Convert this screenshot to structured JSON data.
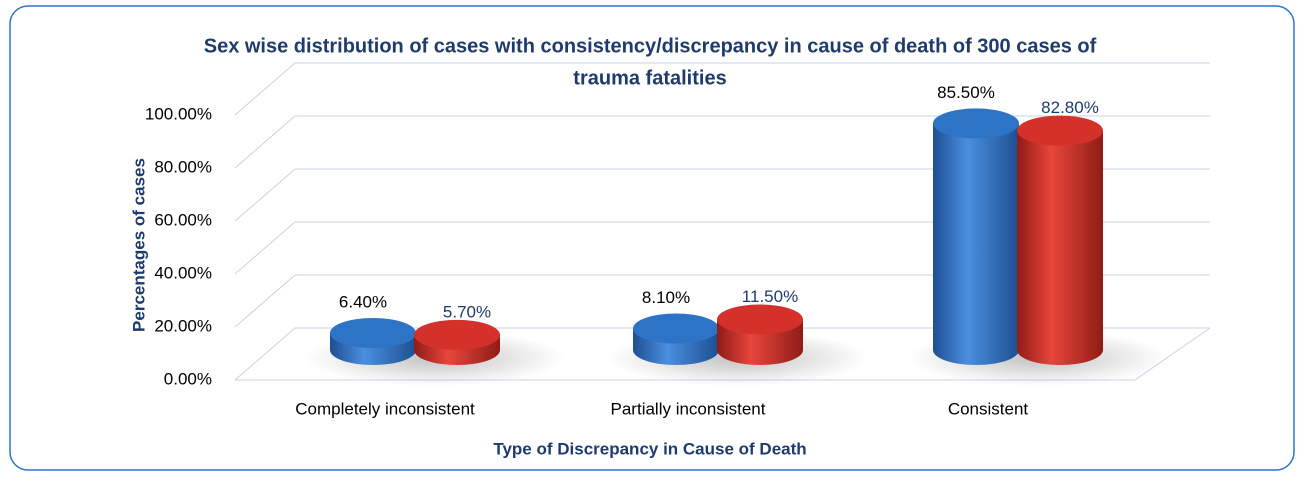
{
  "chart_data": {
    "type": "bar3d",
    "title": "Sex wise distribution of cases with consistency/discrepancy in cause of death of 300 cases of",
    "title_line2": "trauma fatalities",
    "x_label": "Type of Discrepancy in Cause of Death",
    "y_label": "Percentages of cases",
    "categories": [
      "Completely inconsistent",
      "Partially inconsistent",
      "Consistent"
    ],
    "series": [
      {
        "color": "#2e74c6",
        "values": [
          6.4,
          8.1,
          85.5
        ],
        "value_labels": [
          "6.40%",
          "8.10%",
          "85.50%"
        ]
      },
      {
        "color": "#d3312a",
        "values": [
          5.7,
          11.5,
          82.8
        ],
        "value_labels": [
          "5.70%",
          "11.50%",
          "82.80%"
        ]
      }
    ],
    "ylim": [
      0,
      100
    ],
    "yticks": [
      {
        "value": 0,
        "label": "0.00%"
      },
      {
        "value": 20,
        "label": "20.00%"
      },
      {
        "value": 40,
        "label": "40.00%"
      },
      {
        "value": 60,
        "label": "60.00%"
      },
      {
        "value": 80,
        "label": "80.00%"
      },
      {
        "value": 100,
        "label": "100.00%"
      }
    ],
    "grid": true
  }
}
